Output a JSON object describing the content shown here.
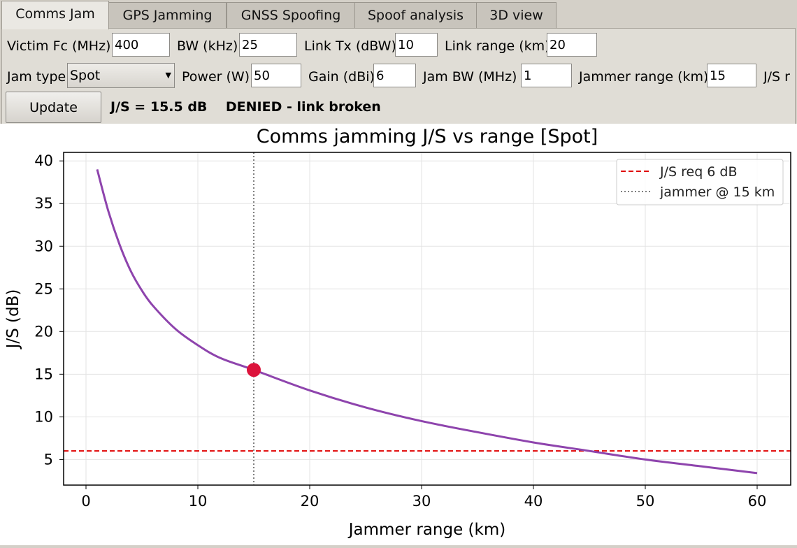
{
  "tabs": [
    {
      "label": "Comms Jam",
      "active": true
    },
    {
      "label": "GPS Jamming",
      "active": false
    },
    {
      "label": "GNSS Spoofing",
      "active": false
    },
    {
      "label": "Spoof analysis",
      "active": false
    },
    {
      "label": "3D view",
      "active": false
    }
  ],
  "row1": {
    "victim_fc_label": "Victim Fc (MHz)",
    "victim_fc_value": "400",
    "bw_label": "BW (kHz)",
    "bw_value": "25",
    "link_tx_label": "Link Tx (dBW)",
    "link_tx_value": "10",
    "link_range_label": "Link range (km)",
    "link_range_value": "20"
  },
  "row2": {
    "jam_type_label": "Jam type",
    "jam_type_value": "Spot",
    "power_label": "Power (W)",
    "power_value": "50",
    "gain_label": "Gain (dBi)",
    "gain_value": "6",
    "jam_bw_label": "Jam BW (MHz)",
    "jam_bw_value": "1",
    "jammer_range_label": "Jammer range (km)",
    "jammer_range_value": "15",
    "js_req_label_partial": "J/S r"
  },
  "update_button": "Update",
  "status_text": "J/S = 15.5 dB    DENIED - link broken",
  "colors": {
    "curve": "#8e44ad",
    "threshold": "#e00000",
    "marker": "#dc143c",
    "jammer_line": "#808080"
  },
  "chart_data": {
    "type": "line",
    "title": "Comms jamming J/S vs range  [Spot]",
    "xlabel": "Jammer range (km)",
    "ylabel": "J/S (dB)",
    "xlim": [
      -2,
      63
    ],
    "ylim": [
      2,
      41
    ],
    "xticks": [
      0,
      10,
      20,
      30,
      40,
      50,
      60
    ],
    "yticks": [
      5,
      10,
      15,
      20,
      25,
      30,
      35,
      40
    ],
    "grid": true,
    "legend_position": "top-right",
    "series": [
      {
        "name": "",
        "x": [
          1,
          2,
          3,
          4,
          5,
          6,
          8,
          10,
          12,
          15,
          20,
          25,
          30,
          35,
          40,
          45,
          50,
          55,
          60
        ],
        "y": [
          39.0,
          34.1,
          30.2,
          27.1,
          24.8,
          23.0,
          20.3,
          18.4,
          16.9,
          15.5,
          13.1,
          11.1,
          9.5,
          8.2,
          7.0,
          6.0,
          5.0,
          4.2,
          3.4
        ]
      }
    ],
    "threshold": {
      "label": "J/S req 6 dB",
      "y": 6
    },
    "jammer": {
      "label": "jammer @ 15 km",
      "x": 15
    },
    "marker": {
      "x": 15,
      "y": 15.5
    }
  }
}
